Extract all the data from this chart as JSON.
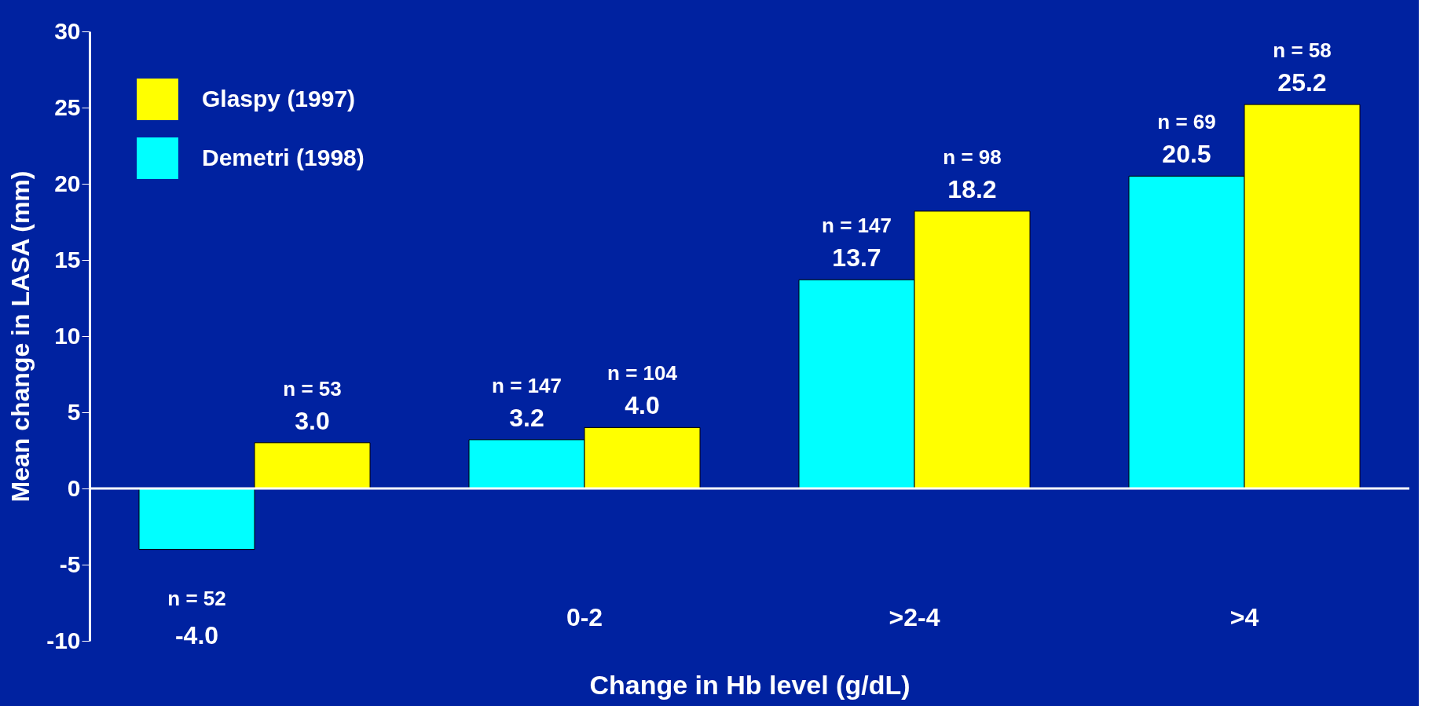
{
  "chart_data": {
    "type": "bar",
    "xlabel": "Change in Hb level (g/dL)",
    "ylabel": "Mean change in LASA (mm)",
    "categories": [
      null,
      "0-2",
      ">2-4",
      ">4"
    ],
    "series": [
      {
        "name": "Demetri (1998)",
        "color": "#00ffff",
        "values": [
          -4.0,
          3.2,
          13.7,
          20.5
        ],
        "value_labels": [
          "-4.0",
          "3.2",
          "13.7",
          "20.5"
        ]
      },
      {
        "name": "Glaspy (1997)",
        "color": "#ffff00",
        "values": [
          3.0,
          4.0,
          18.2,
          25.2
        ],
        "value_labels": [
          "3.0",
          "4.0",
          "18.2",
          "25.2"
        ]
      }
    ],
    "ylim": [
      -10,
      30
    ],
    "yticks": [
      -10,
      -5,
      0,
      5,
      10,
      15,
      20,
      25,
      30
    ],
    "legend": "top left",
    "annotations": [
      {
        "text": "n = 52",
        "y": -4.0
      },
      {
        "text": "n = 53",
        "y": 3.0
      },
      {
        "text": "n = 147",
        "x": "0-2",
        "y": 3.2
      },
      {
        "text": "n = 104",
        "x": "0-2",
        "y": 4.0
      },
      {
        "text": "n = 147",
        "x": ">2-4",
        "y": 13.7
      },
      {
        "text": "n = 98",
        "x": ">2-4",
        "y": 18.2
      },
      {
        "text": "n = 69",
        "x": ">4",
        "y": 20.5
      },
      {
        "text": "n = 58",
        "x": ">4",
        "y": 25.2
      }
    ]
  }
}
